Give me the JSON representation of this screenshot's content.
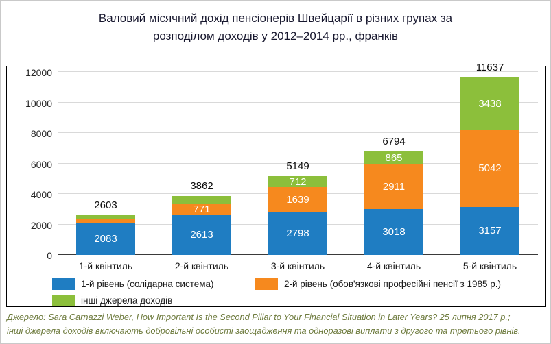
{
  "title": {
    "line1": "Валовий місячний дохід пенсіонерів Швейцарії в різних групах  за",
    "line2": "розподілом доходів у 2012–2014 рр., франків"
  },
  "chart_data": {
    "type": "bar",
    "stacked": true,
    "title": "Валовий місячний дохід пенсіонерів Швейцарії в різних групах за розподілом доходів у 2012–2014 рр., франків",
    "categories": [
      "1-й квінтиль",
      "2-й квінтиль",
      "3-й квінтиль",
      "4-й квінтиль",
      "5-й квінтиль"
    ],
    "series": [
      {
        "name": "1-й рівень (солідарна система)",
        "color": "#1f7dc2",
        "values": [
          2083,
          2613,
          2798,
          3018,
          3157
        ],
        "labels": [
          "2083",
          "2613",
          "2798",
          "3018",
          "3157"
        ]
      },
      {
        "name": "2-й рівень (обов'язкові професійні пенсії з 1985 р.)",
        "color": "#f6891e",
        "values": [
          320,
          771,
          1639,
          2911,
          5042
        ],
        "labels": [
          "",
          "771",
          "1639",
          "2911",
          "5042"
        ]
      },
      {
        "name": "інші джерела доходів",
        "color": "#8cbf3b",
        "values": [
          200,
          478,
          712,
          865,
          3438
        ],
        "labels": [
          "",
          "",
          "712",
          "865",
          "3438"
        ]
      }
    ],
    "totals": [
      2603,
      3862,
      5149,
      6794,
      11637
    ],
    "ylim": [
      0,
      12000
    ],
    "ytick_step": 2000,
    "yticks": [
      "0",
      "2000",
      "4000",
      "6000",
      "8000",
      "10000",
      "12000"
    ],
    "grid": true,
    "legend_position": "bottom"
  },
  "source": {
    "prefix": "Джерело: Sara Carnazzi Weber, ",
    "work_title": "How Important Is the Second Pillar to Your Financial Situation in Later Years?",
    "after": " 25 липня 2017 р.;",
    "line2": "інші джерела доходів включають добровільні особисті заощадження та одноразові виплати з другого та третього рівнів."
  }
}
